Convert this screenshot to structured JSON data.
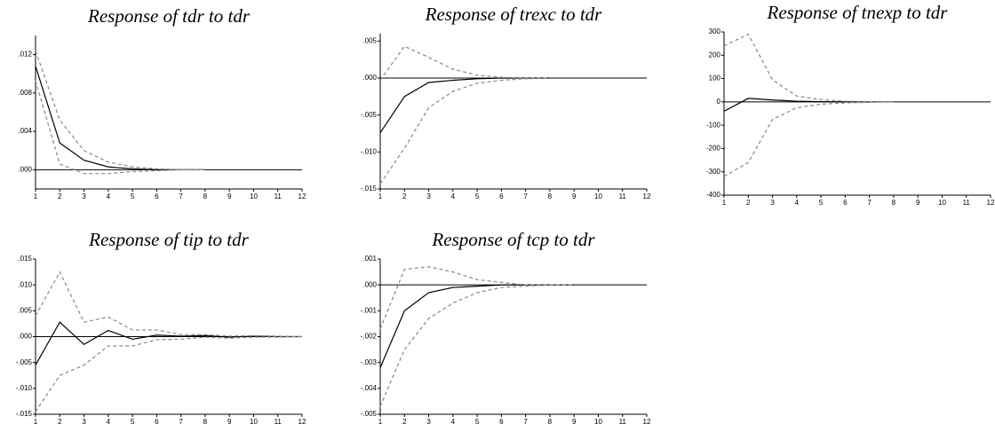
{
  "chart_data": [
    {
      "type": "line",
      "title": "Response of tdr to tdr",
      "x": [
        1,
        2,
        3,
        4,
        5,
        6,
        7,
        8,
        9,
        10,
        11,
        12
      ],
      "xlim": [
        1,
        12
      ],
      "xticks": [
        1,
        2,
        3,
        4,
        5,
        6,
        7,
        8,
        9,
        10,
        11,
        12
      ],
      "ylim": [
        -0.002,
        0.014
      ],
      "yticks": [
        {
          "value": 0.0,
          "label": ".000"
        },
        {
          "value": 0.004,
          "label": ".004"
        },
        {
          "value": 0.008,
          "label": ".008"
        },
        {
          "value": 0.012,
          "label": ".012"
        }
      ],
      "series": [
        {
          "color": "#000000",
          "style": "solid",
          "values": [
            0.0108,
            0.0028,
            0.001,
            0.0003,
            0.0001,
            0,
            0,
            0,
            null,
            null,
            null,
            null
          ]
        },
        {
          "color": "#888888",
          "style": "dashed",
          "values": [
            0.0124,
            0.0052,
            0.002,
            0.0008,
            0.0003,
            0.0001,
            0,
            0,
            null,
            null,
            null,
            null
          ]
        },
        {
          "color": "#888888",
          "style": "dashed",
          "values": [
            0.0093,
            0.0006,
            -0.0004,
            -0.0004,
            -0.0002,
            -0.0001,
            0,
            0,
            null,
            null,
            null,
            null
          ]
        }
      ]
    },
    {
      "type": "line",
      "title": "Response of trexc to tdr",
      "x": [
        1,
        2,
        3,
        4,
        5,
        6,
        7,
        8,
        9,
        10,
        11,
        12
      ],
      "xlim": [
        1,
        12
      ],
      "xticks": [
        1,
        2,
        3,
        4,
        5,
        6,
        7,
        8,
        9,
        10,
        11,
        12
      ],
      "ylim": [
        -0.015,
        0.006
      ],
      "yticks": [
        {
          "value": -0.015,
          "label": "-.015"
        },
        {
          "value": -0.01,
          "label": "-.010"
        },
        {
          "value": -0.005,
          "label": "-.005"
        },
        {
          "value": 0.0,
          "label": ".000"
        },
        {
          "value": 0.005,
          "label": ".005"
        }
      ],
      "series": [
        {
          "color": "#000000",
          "style": "solid",
          "values": [
            -0.0074,
            -0.0025,
            -0.0006,
            -0.0003,
            -0.0001,
            0,
            0,
            0,
            null,
            null,
            null,
            null
          ]
        },
        {
          "color": "#888888",
          "style": "dashed",
          "values": [
            -0.0003,
            0.0043,
            0.0028,
            0.0012,
            0.0004,
            0.0001,
            0,
            0,
            null,
            null,
            null,
            null
          ]
        },
        {
          "color": "#888888",
          "style": "dashed",
          "values": [
            -0.0143,
            -0.0095,
            -0.004,
            -0.0018,
            -0.0007,
            -0.0003,
            -0.0001,
            0,
            null,
            null,
            null,
            null
          ]
        }
      ]
    },
    {
      "type": "line",
      "title": "Response of tnexp to tdr",
      "x": [
        1,
        2,
        3,
        4,
        5,
        6,
        7,
        8,
        9,
        10,
        11,
        12
      ],
      "xlim": [
        1,
        12
      ],
      "xticks": [
        1,
        2,
        3,
        4,
        5,
        6,
        7,
        8,
        9,
        10,
        11,
        12
      ],
      "ylim": [
        -400,
        300
      ],
      "yticks": [
        -400,
        -300,
        -200,
        -100,
        0,
        100,
        200,
        300
      ],
      "series": [
        {
          "color": "#000000",
          "style": "solid",
          "values": [
            -40,
            15,
            8,
            3,
            1,
            0,
            0,
            0,
            null,
            null,
            null,
            null
          ]
        },
        {
          "color": "#888888",
          "style": "dashed",
          "values": [
            240,
            290,
            95,
            25,
            10,
            3,
            1,
            0,
            null,
            null,
            null,
            null
          ]
        },
        {
          "color": "#888888",
          "style": "dashed",
          "values": [
            -320,
            -260,
            -75,
            -25,
            -10,
            -4,
            -2,
            0,
            null,
            null,
            null,
            null
          ]
        }
      ]
    },
    {
      "type": "line",
      "title": "Response of tip to tdr",
      "x": [
        1,
        2,
        3,
        4,
        5,
        6,
        7,
        8,
        9,
        10,
        11,
        12
      ],
      "xlim": [
        1,
        12
      ],
      "xticks": [
        1,
        2,
        3,
        4,
        5,
        6,
        7,
        8,
        9,
        10,
        11,
        12
      ],
      "ylim": [
        -0.015,
        0.015
      ],
      "yticks": [
        {
          "value": -0.015,
          "label": "-.015"
        },
        {
          "value": -0.01,
          "label": "-.010"
        },
        {
          "value": -0.005,
          "label": "-.005"
        },
        {
          "value": 0.0,
          "label": ".000"
        },
        {
          "value": 0.005,
          "label": ".005"
        },
        {
          "value": 0.01,
          "label": ".010"
        },
        {
          "value": 0.015,
          "label": ".015"
        }
      ],
      "series": [
        {
          "color": "#000000",
          "style": "solid",
          "values": [
            -0.0055,
            0.0028,
            -0.0015,
            0.0012,
            -0.0005,
            0.0003,
            0.0001,
            0.0002,
            -0.0001,
            0.0001,
            0,
            0
          ]
        },
        {
          "color": "#888888",
          "style": "dashed",
          "values": [
            0.004,
            0.0125,
            0.0028,
            0.0038,
            0.0013,
            0.0013,
            0.0004,
            0.0004,
            0.0001,
            0.0002,
            0.0001,
            0
          ]
        },
        {
          "color": "#888888",
          "style": "dashed",
          "values": [
            -0.0145,
            -0.0075,
            -0.0055,
            -0.0018,
            -0.0018,
            -0.0006,
            -0.0005,
            -0.0001,
            -0.0003,
            -0.0001,
            -0.0001,
            0
          ]
        }
      ]
    },
    {
      "type": "line",
      "title": "Response of tcp to tdr",
      "x": [
        1,
        2,
        3,
        4,
        5,
        6,
        7,
        8,
        9,
        10,
        11,
        12
      ],
      "xlim": [
        1,
        12
      ],
      "xticks": [
        1,
        2,
        3,
        4,
        5,
        6,
        7,
        8,
        9,
        10,
        11,
        12
      ],
      "ylim": [
        -0.005,
        0.001
      ],
      "yticks": [
        {
          "value": -0.005,
          "label": "-.005"
        },
        {
          "value": -0.004,
          "label": "-.004"
        },
        {
          "value": -0.003,
          "label": "-.003"
        },
        {
          "value": -0.002,
          "label": "-.002"
        },
        {
          "value": -0.001,
          "label": "-.001"
        },
        {
          "value": 0.0,
          "label": ".000"
        },
        {
          "value": 0.001,
          "label": ".001"
        }
      ],
      "series": [
        {
          "color": "#000000",
          "style": "solid",
          "values": [
            -0.0032,
            -0.001,
            -0.0003,
            -0.0001,
            -5e-05,
            0,
            0,
            0,
            0,
            null,
            null,
            null
          ]
        },
        {
          "color": "#888888",
          "style": "dashed",
          "values": [
            -0.0017,
            0.0006,
            0.0007,
            0.0005,
            0.0002,
            0.0001,
            0,
            0,
            0,
            null,
            null,
            null
          ]
        },
        {
          "color": "#888888",
          "style": "dashed",
          "values": [
            -0.0047,
            -0.0025,
            -0.0013,
            -0.0007,
            -0.0003,
            -0.0001,
            -5e-05,
            0,
            0,
            null,
            null,
            null
          ]
        }
      ]
    }
  ]
}
